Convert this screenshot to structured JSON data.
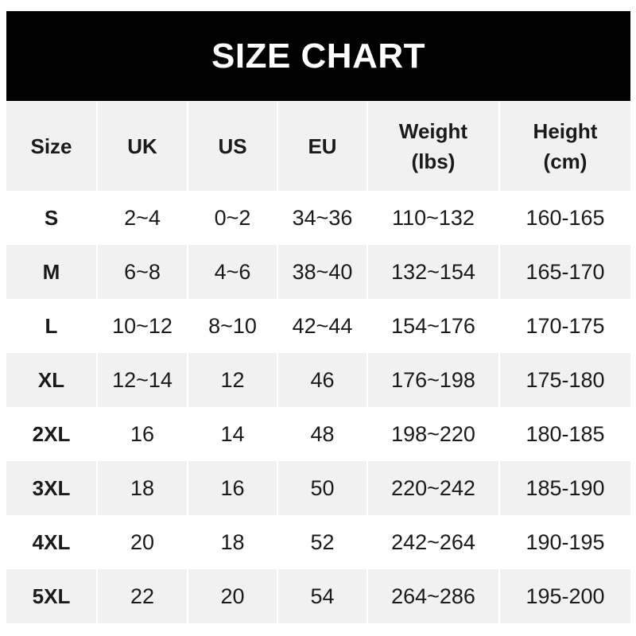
{
  "title": "SIZE CHART",
  "headers": [
    "Size",
    "UK",
    "US",
    "EU",
    "Weight\n(lbs)",
    "Height\n(cm)"
  ],
  "header_lines": {
    "weight": [
      "Weight",
      "(lbs)"
    ],
    "height": [
      "Height",
      "(cm)"
    ]
  },
  "rows": [
    [
      "S",
      "2~4",
      "0~2",
      "34~36",
      "110~132",
      "160-165"
    ],
    [
      "M",
      "6~8",
      "4~6",
      "38~40",
      "132~154",
      "165-170"
    ],
    [
      "L",
      "10~12",
      "8~10",
      "42~44",
      "154~176",
      "170-175"
    ],
    [
      "XL",
      "12~14",
      "12",
      "46",
      "176~198",
      "175-180"
    ],
    [
      "2XL",
      "16",
      "14",
      "48",
      "198~220",
      "180-185"
    ],
    [
      "3XL",
      "18",
      "16",
      "50",
      "220~242",
      "185-190"
    ],
    [
      "4XL",
      "20",
      "18",
      "52",
      "242~264",
      "190-195"
    ],
    [
      "5XL",
      "22",
      "20",
      "54",
      "264~286",
      "195-200"
    ]
  ],
  "colors": {
    "title_bg": "#000000",
    "stripe": "#f1f1f1"
  }
}
